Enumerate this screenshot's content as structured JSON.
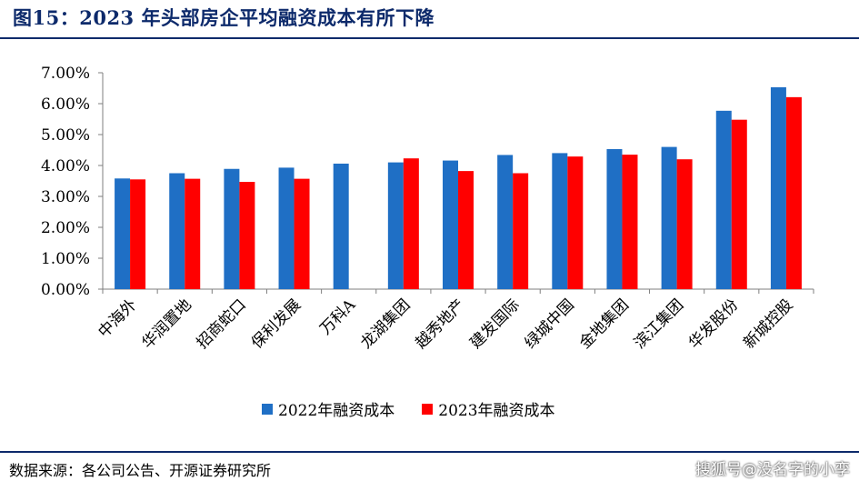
{
  "title": "图15：2023 年头部房企平均融资成本有所下降",
  "source": "数据来源：各公司公告、开源证券研究所",
  "watermark": "搜狐号@没名字的小孪",
  "chart_data": {
    "type": "bar",
    "categories": [
      "中海外",
      "华润置地",
      "招商蛇口",
      "保利发展",
      "万科A",
      "龙湖集团",
      "越秀地产",
      "建发国际",
      "绿城中国",
      "金地集团",
      "滨江集团",
      "华发股份",
      "新城控股"
    ],
    "series": [
      {
        "name": "2022年融资成本",
        "color": "#1f6fc5",
        "values": [
          3.58,
          3.75,
          3.89,
          3.93,
          4.06,
          4.1,
          4.16,
          4.34,
          4.4,
          4.53,
          4.6,
          5.77,
          6.53
        ]
      },
      {
        "name": "2023年融资成本",
        "color": "#ff0000",
        "values": [
          3.55,
          3.57,
          3.47,
          3.57,
          null,
          4.23,
          3.82,
          3.75,
          4.29,
          4.35,
          4.2,
          5.48,
          6.21
        ]
      }
    ],
    "ylim": [
      0,
      7
    ],
    "yticks": [
      "0.00%",
      "1.00%",
      "2.00%",
      "3.00%",
      "4.00%",
      "5.00%",
      "6.00%",
      "7.00%"
    ],
    "grid": false,
    "legend_position": "bottom"
  }
}
